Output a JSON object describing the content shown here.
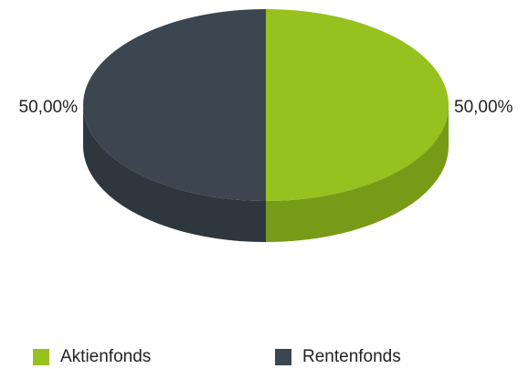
{
  "chart_data": {
    "type": "pie",
    "style": "3d",
    "slices": [
      {
        "label": "Aktienfonds",
        "value": 50.0,
        "value_label": "50,00%",
        "color": "#97c11f",
        "side_color": "#789b17"
      },
      {
        "label": "Rentenfonds",
        "value": 50.0,
        "value_label": "50,00%",
        "color": "#3b4650",
        "side_color": "#2e363e"
      }
    ],
    "legend": {
      "placement": "bottom"
    }
  }
}
